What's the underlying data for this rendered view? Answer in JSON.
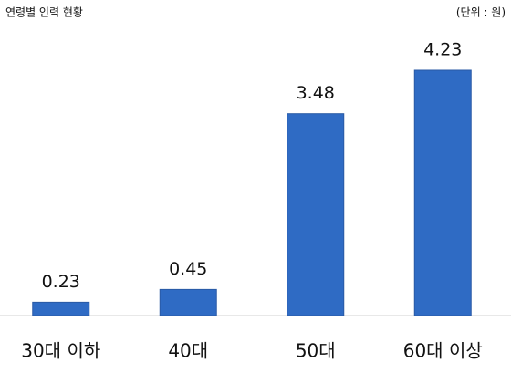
{
  "chart_data": {
    "type": "bar",
    "title": "연령별 인력 현황",
    "unit": "(단위 : 원)",
    "categories": [
      "30대 이하",
      "40대",
      "50대",
      "60대 이상"
    ],
    "values": [
      0.23,
      0.45,
      3.48,
      4.23
    ],
    "color": "#2f6bc4"
  }
}
